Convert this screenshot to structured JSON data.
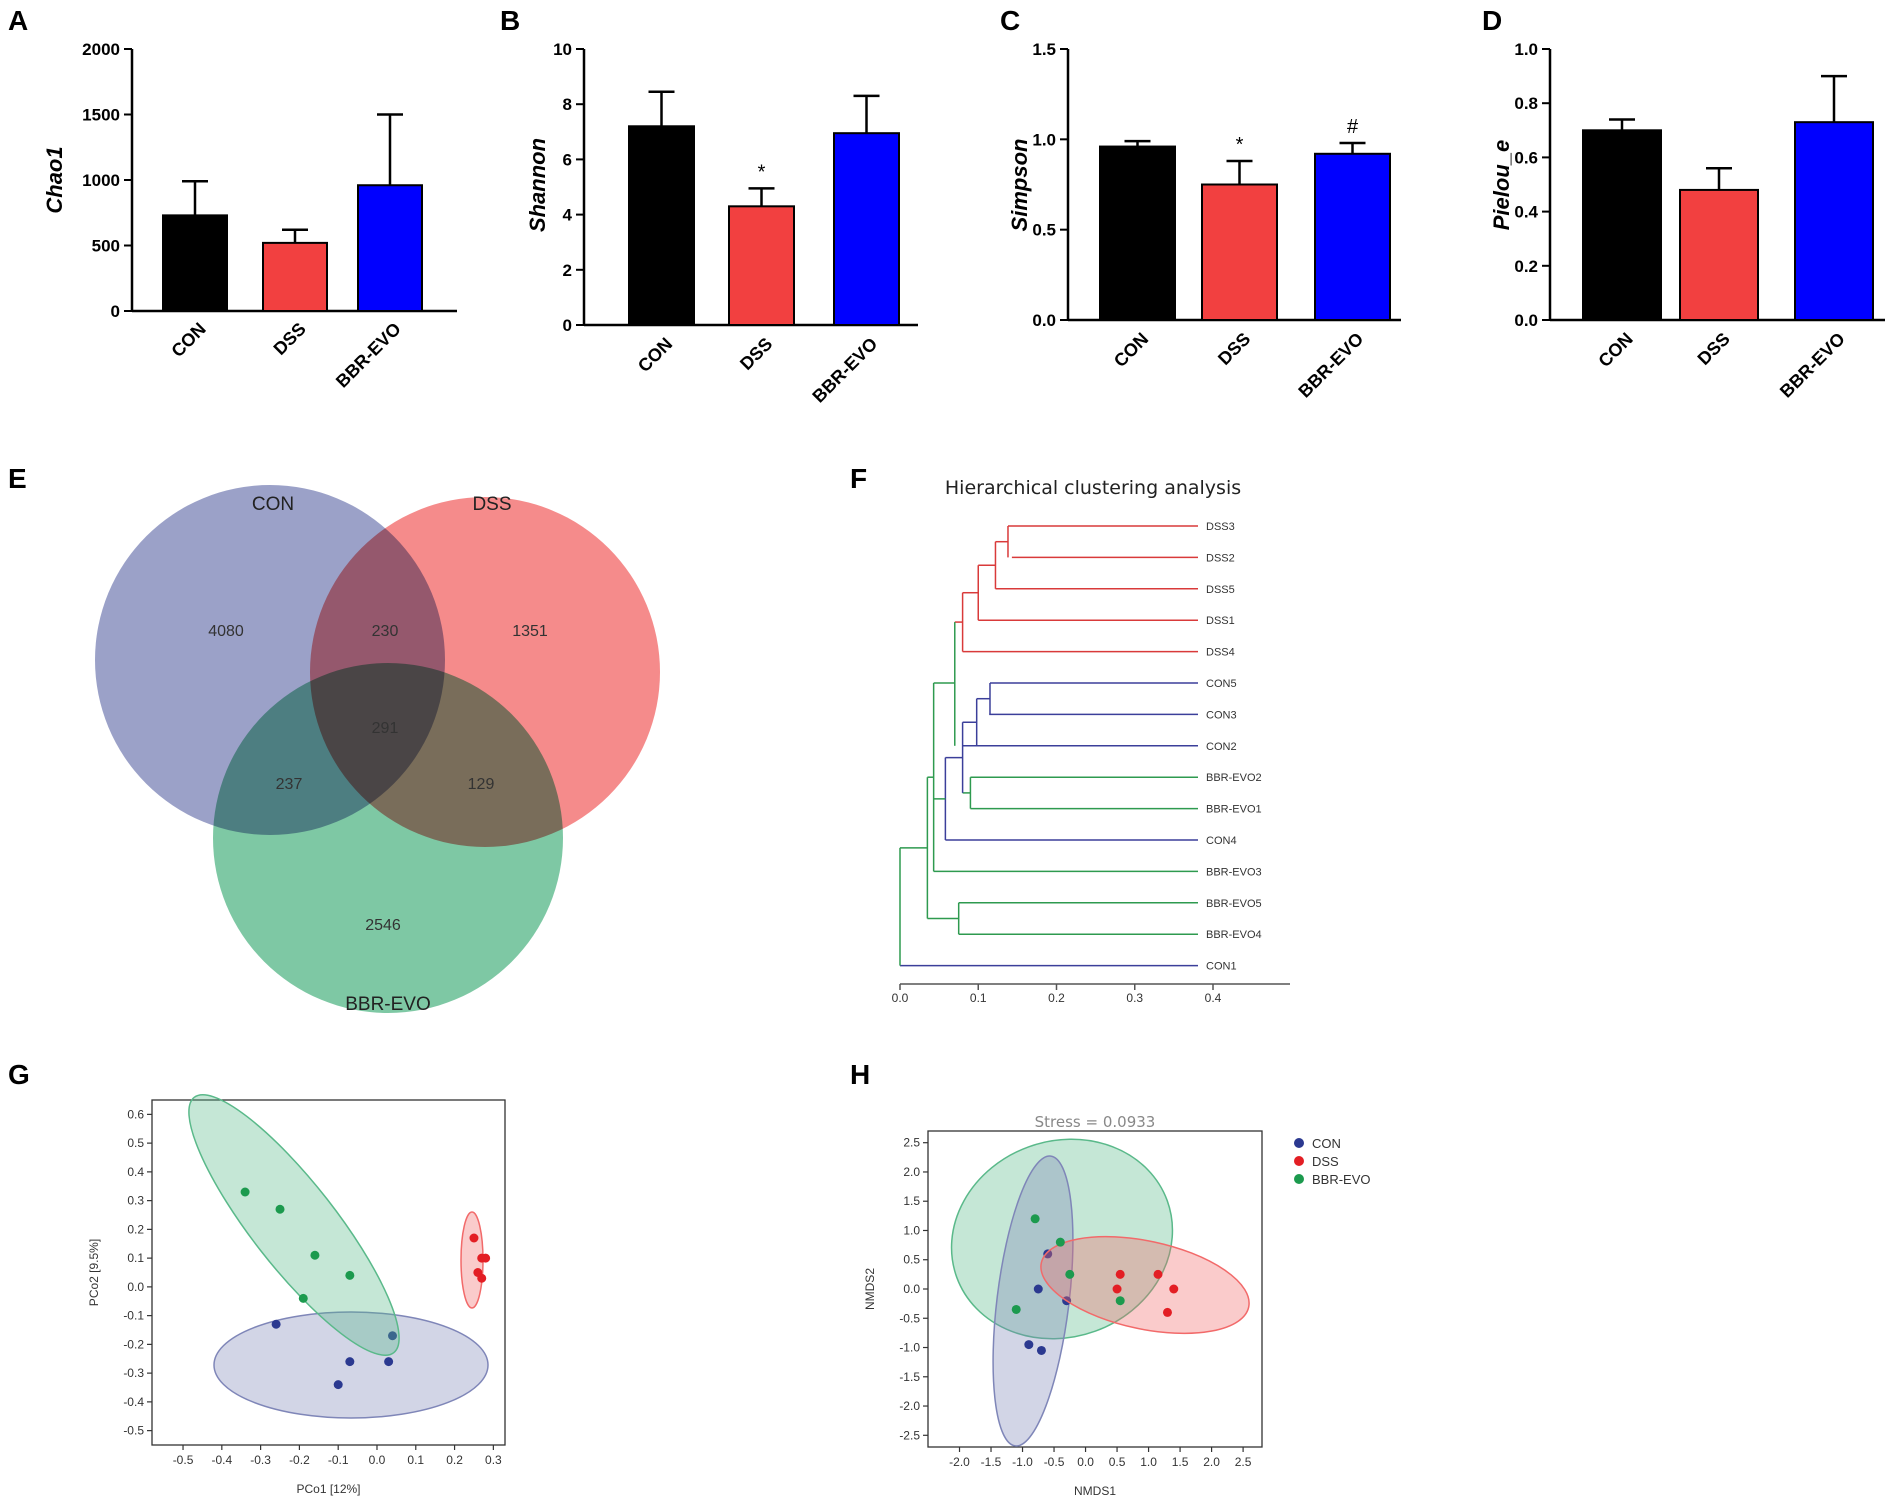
{
  "panels": {
    "A": "A",
    "B": "B",
    "C": "C",
    "D": "D",
    "E": "E",
    "F": "F",
    "G": "G",
    "H": "H"
  },
  "colors": {
    "CON": "#000000",
    "DSS": "#f24040",
    "BBR-EVO": "#0000ff",
    "venn_con": "#7f86b8",
    "venn_dss": "#f26a6a",
    "venn_bbr": "#5ab98a",
    "tree_red": "#d93a3a",
    "tree_blue": "#3b3f9a",
    "tree_green": "#2e9a4f",
    "pt_con": "#2b3990",
    "pt_dss": "#e31e24",
    "pt_bbr": "#1c9a4e"
  },
  "chart_data": [
    {
      "id": "A",
      "type": "bar",
      "ylabel": "Chao1",
      "categories": [
        "CON",
        "DSS",
        "BBR-EVO"
      ],
      "values": [
        730,
        520,
        960
      ],
      "errors": [
        260,
        100,
        540
      ],
      "ylim": [
        0,
        2000
      ],
      "yticks": [
        "0",
        "500",
        "1000",
        "1500",
        "2000"
      ],
      "significance": [
        "",
        "",
        ""
      ]
    },
    {
      "id": "B",
      "type": "bar",
      "ylabel": "Shannon",
      "categories": [
        "CON",
        "DSS",
        "BBR-EVO"
      ],
      "values": [
        7.2,
        4.3,
        6.95
      ],
      "errors": [
        1.25,
        0.65,
        1.35
      ],
      "ylim": [
        0,
        10
      ],
      "yticks": [
        "0",
        "2",
        "4",
        "6",
        "8",
        "10"
      ],
      "significance": [
        "",
        "*",
        ""
      ]
    },
    {
      "id": "C",
      "type": "bar",
      "ylabel": "Simpson",
      "categories": [
        "CON",
        "DSS",
        "BBR-EVO"
      ],
      "values": [
        0.96,
        0.75,
        0.92
      ],
      "errors": [
        0.03,
        0.13,
        0.06
      ],
      "ylim": [
        0,
        1.5
      ],
      "yticks": [
        "0.0",
        "0.5",
        "1.0",
        "1.5"
      ],
      "significance": [
        "",
        "*",
        "#"
      ]
    },
    {
      "id": "D",
      "type": "bar",
      "ylabel": "Pielou_e",
      "categories": [
        "CON",
        "DSS",
        "BBR-EVO"
      ],
      "values": [
        0.7,
        0.48,
        0.73
      ],
      "errors": [
        0.04,
        0.08,
        0.17
      ],
      "ylim": [
        0,
        1.0
      ],
      "yticks": [
        "0.0",
        "0.2",
        "0.4",
        "0.6",
        "0.8",
        "1.0"
      ],
      "significance": [
        "",
        "",
        ""
      ]
    },
    {
      "id": "E",
      "type": "venn",
      "sets": [
        "CON",
        "DSS",
        "BBR-EVO"
      ],
      "regions": {
        "CON_only": "4080",
        "DSS_only": "1351",
        "BBR_only": "2546",
        "CON_DSS": "230",
        "CON_BBR": "237",
        "DSS_BBR": "129",
        "all": "291"
      }
    },
    {
      "id": "F",
      "type": "dendrogram",
      "title": "Hierarchical clustering analysis",
      "leaves": [
        "DSS3",
        "DSS2",
        "DSS5",
        "DSS1",
        "DSS4",
        "CON5",
        "CON3",
        "CON2",
        "BBR-EVO2",
        "BBR-EVO1",
        "CON4",
        "BBR-EVO3",
        "BBR-EVO5",
        "BBR-EVO4",
        "CON1"
      ],
      "xticks": [
        "0.0",
        "0.1",
        "0.2",
        "0.3",
        "0.4"
      ],
      "xlim": [
        0,
        0.5
      ]
    },
    {
      "id": "G",
      "type": "scatter",
      "xlabel": "PCo1 [12%]",
      "ylabel": "PCo2 [9.5%]",
      "xlim": [
        -0.58,
        0.33
      ],
      "ylim": [
        -0.55,
        0.65
      ],
      "xticks": [
        "-0.5",
        "-0.4",
        "-0.3",
        "-0.2",
        "-0.1",
        "0.0",
        "0.1",
        "0.2",
        "0.3"
      ],
      "yticks": [
        "-0.5",
        "-0.4",
        "-0.3",
        "-0.2",
        "-0.1",
        "0.0",
        "0.1",
        "0.2",
        "0.3",
        "0.4",
        "0.5",
        "0.6"
      ],
      "series": [
        {
          "name": "CON",
          "points": [
            [
              -0.26,
              -0.13
            ],
            [
              -0.1,
              -0.34
            ],
            [
              -0.07,
              -0.26
            ],
            [
              0.03,
              -0.26
            ],
            [
              0.04,
              -0.17
            ]
          ],
          "ellipse": {
            "cx": -0.1,
            "cy": -0.25,
            "rx": 0.4,
            "ry": 0.14,
            "angle": 0
          }
        },
        {
          "name": "DSS",
          "points": [
            [
              0.25,
              0.17
            ],
            [
              0.27,
              0.1
            ],
            [
              0.28,
              0.1
            ],
            [
              0.26,
              0.05
            ],
            [
              0.27,
              0.03
            ]
          ],
          "ellipse": {
            "cx": 0.27,
            "cy": 0.09,
            "rx": 0.19,
            "ry": 0.03,
            "angle": 90
          }
        },
        {
          "name": "BBR-EVO",
          "points": [
            [
              -0.34,
              0.33
            ],
            [
              -0.25,
              0.27
            ],
            [
              -0.16,
              0.11
            ],
            [
              -0.07,
              0.04
            ],
            [
              -0.19,
              -0.04
            ]
          ],
          "ellipse": {
            "cx": -0.2,
            "cy": 0.13,
            "rx": 0.56,
            "ry": 0.075,
            "angle": 49
          }
        }
      ]
    },
    {
      "id": "H",
      "type": "scatter",
      "title": "Stress = 0.0933",
      "xlabel": "NMDS1",
      "ylabel": "NMDS2",
      "xlim": [
        -2.5,
        2.8
      ],
      "ylim": [
        -2.7,
        2.7
      ],
      "xticks": [
        "-2.0",
        "-1.5",
        "-1.0",
        "-0.5",
        "0.0",
        "0.5",
        "1.0",
        "1.5",
        "2.0",
        "2.5"
      ],
      "yticks": [
        "-2.5",
        "-2.0",
        "-1.5",
        "-1.0",
        "-0.5",
        "0.0",
        "0.5",
        "1.0",
        "1.5",
        "2.0",
        "2.5"
      ],
      "legend": [
        "CON",
        "DSS",
        "BBR-EVO"
      ],
      "series": [
        {
          "name": "CON",
          "points": [
            [
              -0.6,
              0.6
            ],
            [
              -0.75,
              0.0
            ],
            [
              -0.3,
              -0.2
            ],
            [
              -0.9,
              -0.95
            ],
            [
              -0.7,
              -1.05
            ]
          ],
          "ellipse": {
            "cx": -0.6,
            "cy": -0.45,
            "rx": 2.6,
            "ry": 0.7,
            "angle": 97
          }
        },
        {
          "name": "DSS",
          "points": [
            [
              0.5,
              0.0
            ],
            [
              0.55,
              0.25
            ],
            [
              1.15,
              0.25
            ],
            [
              1.4,
              0.0
            ],
            [
              1.3,
              -0.4
            ]
          ],
          "ellipse": {
            "cx": 0.6,
            "cy": 0.0,
            "rx": 1.75,
            "ry": 0.8,
            "angle": -14
          }
        },
        {
          "name": "BBR-EVO",
          "points": [
            [
              -0.8,
              1.2
            ],
            [
              -0.4,
              0.8
            ],
            [
              -0.25,
              0.25
            ],
            [
              0.55,
              -0.2
            ],
            [
              -1.1,
              -0.35
            ]
          ],
          "ellipse": {
            "cx": -0.1,
            "cy": 0.45,
            "rx": 1.9,
            "ry": 1.65,
            "angle": -25
          }
        }
      ]
    }
  ]
}
